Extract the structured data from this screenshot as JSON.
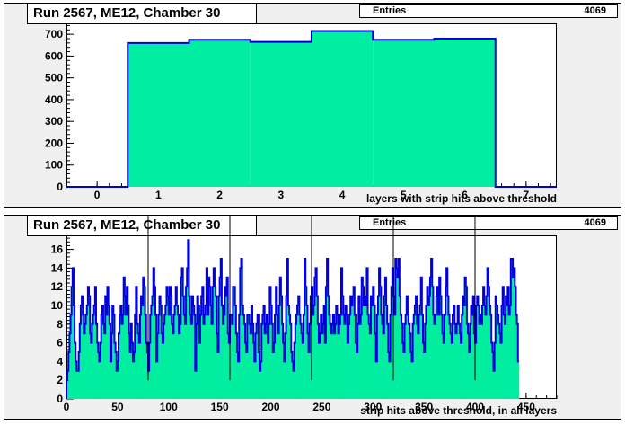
{
  "panels": [
    {
      "title": "Run 2567, ME12, Chamber 30",
      "stats_label": "Entries",
      "stats_value": "4069"
    },
    {
      "title": "Run 2567, ME12, Chamber 30",
      "stats_label": "Entries",
      "stats_value": "4069"
    }
  ],
  "colors": {
    "fill": "#00ee9f",
    "line": "#0000dd",
    "frame_bg": "#f0f0f0",
    "marker_line": "#000000"
  },
  "chart_data": [
    {
      "type": "bar",
      "title": "Run 2567, ME12, Chamber 30",
      "xlabel": "layers with strip hits above threshold",
      "ylabel": "",
      "categories": [
        "0",
        "1",
        "2",
        "3",
        "4",
        "5",
        "6",
        "7"
      ],
      "values": [
        0,
        660,
        675,
        665,
        715,
        675,
        680,
        0
      ],
      "xlim": [
        -0.5,
        7.5
      ],
      "ylim": [
        0,
        750
      ],
      "x_ticks": [
        0,
        1,
        2,
        3,
        4,
        5,
        6,
        7
      ],
      "y_ticks": [
        0,
        100,
        200,
        300,
        400,
        500,
        600,
        700
      ]
    },
    {
      "type": "bar",
      "title": "Run 2567, ME12, Chamber 30",
      "xlabel": "strip hits above threshold, in all layers",
      "ylabel": "",
      "xlim": [
        0,
        480
      ],
      "ylim": [
        0,
        17.5
      ],
      "x_ticks": [
        0,
        50,
        100,
        150,
        200,
        250,
        300,
        350,
        400,
        450
      ],
      "y_ticks": [
        0,
        2,
        4,
        6,
        8,
        10,
        12,
        14,
        16
      ],
      "markers": [
        80,
        160,
        240,
        320,
        400
      ],
      "bin_width": 1,
      "values": [
        2,
        3,
        5,
        7,
        9,
        12,
        14,
        10,
        6,
        4,
        3,
        3,
        5,
        8,
        10,
        11,
        9,
        7,
        8,
        9,
        10,
        12,
        11,
        7,
        6,
        8,
        9,
        10,
        12,
        8,
        6,
        5,
        4,
        6,
        9,
        10,
        8,
        7,
        11,
        9,
        12,
        10,
        8,
        4,
        7,
        10,
        9,
        6,
        5,
        3,
        4,
        7,
        9,
        10,
        8,
        9,
        13,
        11,
        9,
        12,
        10,
        7,
        5,
        8,
        6,
        4,
        5,
        9,
        12,
        8,
        7,
        6,
        9,
        11,
        10,
        13,
        12,
        9,
        6,
        5,
        3,
        6,
        9,
        10,
        11,
        14,
        12,
        9,
        4,
        7,
        9,
        11,
        10,
        7,
        6,
        8,
        9,
        10,
        12,
        11,
        9,
        12,
        11,
        8,
        7,
        9,
        10,
        12,
        10,
        9,
        7,
        8,
        13,
        14,
        11,
        9,
        8,
        12,
        14,
        17,
        11,
        9,
        8,
        11,
        10,
        9,
        3,
        8,
        11,
        10,
        6,
        9,
        11,
        12,
        8,
        9,
        10,
        14,
        9,
        13,
        12,
        10,
        8,
        12,
        14,
        12,
        11,
        7,
        5,
        11,
        13,
        15,
        10,
        8,
        9,
        12,
        11,
        13,
        7,
        6,
        9,
        9,
        8,
        12,
        12,
        10,
        7,
        5,
        4,
        9,
        14,
        15,
        10,
        9,
        8,
        6,
        5,
        9,
        9,
        8,
        7,
        10,
        8,
        6,
        4,
        7,
        8,
        9,
        5,
        3,
        4,
        8,
        9,
        10,
        7,
        8,
        9,
        6,
        8,
        12,
        10,
        8,
        5,
        6,
        9,
        12,
        9,
        7,
        10,
        13,
        11,
        8,
        6,
        4,
        7,
        11,
        15,
        10,
        9,
        8,
        5,
        4,
        3,
        6,
        8,
        9,
        10,
        11,
        9,
        8,
        7,
        6,
        9,
        15,
        12,
        10,
        7,
        5,
        8,
        11,
        12,
        9,
        10,
        13,
        14,
        11,
        8,
        6,
        7,
        9,
        7,
        8,
        10,
        6,
        12,
        15,
        11,
        9,
        8,
        7,
        8,
        9,
        7,
        8,
        10,
        9,
        7,
        8,
        9,
        14,
        11,
        9,
        8,
        10,
        9,
        6,
        8,
        9,
        11,
        10,
        11,
        12,
        9,
        6,
        5,
        8,
        11,
        8,
        9,
        13,
        12,
        10,
        11,
        10,
        14,
        9,
        8,
        7,
        11,
        10,
        12,
        10,
        7,
        4,
        9,
        11,
        14,
        12,
        9,
        8,
        7,
        11,
        13,
        10,
        8,
        5,
        4,
        9,
        12,
        14,
        11,
        9,
        15,
        14,
        13,
        15,
        11,
        9,
        8,
        6,
        5,
        8,
        9,
        11,
        9,
        8,
        7,
        5,
        4,
        8,
        9,
        10,
        11,
        8,
        7,
        9,
        10,
        13,
        9,
        6,
        5,
        8,
        10,
        12,
        10,
        11,
        13,
        15,
        12,
        9,
        8,
        9,
        11,
        12,
        9,
        13,
        11,
        9,
        7,
        6,
        9,
        12,
        14,
        11,
        9,
        8,
        7,
        6,
        9,
        10,
        8,
        7,
        8,
        10,
        8,
        7,
        6,
        9,
        11,
        10,
        13,
        12,
        8,
        7,
        5,
        8,
        10,
        9,
        11,
        7,
        6,
        10,
        11,
        10,
        8,
        9,
        8,
        10,
        12,
        10,
        9,
        11,
        14,
        12,
        10,
        9,
        6,
        5,
        3,
        6,
        11,
        10,
        9,
        8,
        7,
        6,
        10,
        12,
        9,
        8,
        11,
        10,
        12,
        9,
        10,
        15,
        15,
        13,
        14,
        12,
        9,
        8,
        4
      ]
    }
  ]
}
